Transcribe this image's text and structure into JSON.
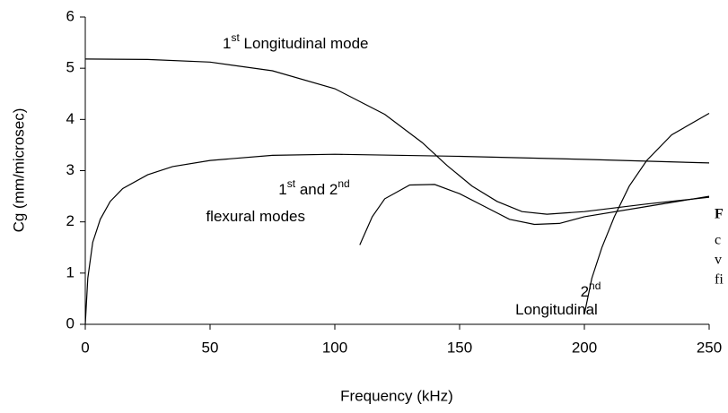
{
  "chart_data": {
    "type": "line",
    "xlabel": "Frequency (kHz)",
    "ylabel": "Cg (mm/microsec)",
    "xlim": [
      0,
      250
    ],
    "xticks": [
      0,
      50,
      100,
      150,
      200,
      250
    ],
    "ylim": [
      0,
      6
    ],
    "yticks": [
      0,
      1,
      2,
      3,
      4,
      5,
      6
    ],
    "grid": false,
    "series": [
      {
        "color": "#000000",
        "x": [
          0,
          25,
          50,
          75,
          100,
          120,
          135,
          145,
          155,
          165,
          175,
          185,
          200,
          225,
          250
        ],
        "values": [
          5.18,
          5.17,
          5.12,
          4.95,
          4.6,
          4.1,
          3.55,
          3.1,
          2.7,
          2.4,
          2.2,
          2.15,
          2.2,
          2.35,
          2.48
        ]
      },
      {
        "color": "#000000",
        "x": [
          0,
          1,
          3,
          6,
          10,
          15,
          25,
          35,
          50,
          75,
          100,
          150,
          200,
          250
        ],
        "values": [
          0,
          0.9,
          1.6,
          2.05,
          2.4,
          2.65,
          2.92,
          3.08,
          3.2,
          3.3,
          3.32,
          3.28,
          3.22,
          3.15
        ]
      },
      {
        "color": "#000000",
        "x": [
          110,
          115,
          120,
          130,
          140,
          150,
          160,
          170,
          180,
          190,
          200,
          225,
          250
        ],
        "values": [
          1.55,
          2.1,
          2.45,
          2.72,
          2.73,
          2.55,
          2.3,
          2.05,
          1.95,
          1.97,
          2.1,
          2.3,
          2.5
        ]
      },
      {
        "color": "#000000",
        "x": [
          200,
          203,
          207,
          212,
          218,
          225,
          235,
          250
        ],
        "values": [
          0.2,
          0.9,
          1.5,
          2.1,
          2.7,
          3.2,
          3.7,
          4.12
        ]
      }
    ],
    "annotations": [
      [
        [
          {
            "text": "1"
          },
          {
            "text": "st",
            "sup": true
          },
          {
            "text": " Longitudinal mode"
          }
        ]
      ],
      [
        [
          {
            "text": "1"
          },
          {
            "text": "st",
            "sup": true
          },
          {
            "text": " and 2"
          },
          {
            "text": "nd",
            "sup": true
          }
        ],
        [
          {
            "text": "flexural modes"
          }
        ]
      ],
      [
        [
          {
            "text": "2"
          },
          {
            "text": "nd",
            "sup": true
          }
        ],
        [
          {
            "text": "Longitudinal"
          }
        ]
      ]
    ],
    "caption": [
      "F",
      "c",
      "v",
      "fi"
    ]
  }
}
